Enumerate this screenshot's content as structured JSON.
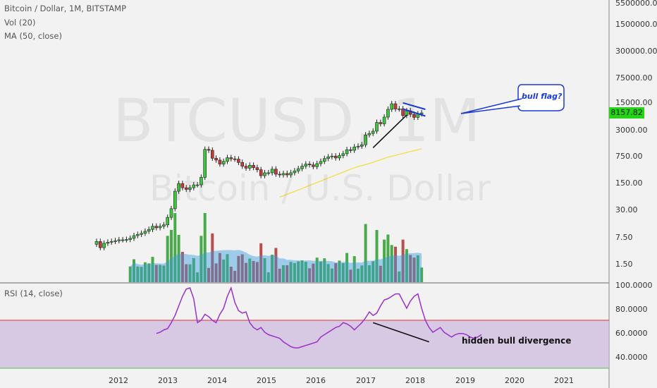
{
  "chart_data": {
    "type": "candlestick",
    "title": "Bitcoin / Dollar, 1M, BITSTAMP",
    "indicators": [
      "Vol (20)",
      "MA (50, close)"
    ],
    "rsi_title": "RSI (14, close)",
    "watermark_symbol": "BTCUSD, 1M",
    "watermark_name": "Bitcoin / U.S. Dollar",
    "y_scale": "log",
    "price_ticks": [
      "5500000.00",
      "1500000.00",
      "300000.00",
      "75000.00",
      "15000.00",
      "3000.00",
      "750.00",
      "150.00",
      "30.00",
      "7.50",
      "1.50"
    ],
    "price_tick_values": [
      5500000,
      1500000,
      300000,
      75000,
      15000,
      3000,
      750,
      150,
      30,
      7.5,
      1.5
    ],
    "rsi_ticks": [
      "100.0000",
      "80.0000",
      "60.0000",
      "40.0000"
    ],
    "rsi_tick_values": [
      100,
      80,
      60,
      40
    ],
    "rsi_levels": [
      70,
      30
    ],
    "x_ticks": [
      "2012",
      "2013",
      "2014",
      "2015",
      "2016",
      "2017",
      "2018",
      "2019",
      "2020",
      "2021"
    ],
    "current_price": "8157.82",
    "close": [
      5,
      3.5,
      4.5,
      4.8,
      5,
      5.2,
      5.5,
      5.5,
      5.6,
      6,
      7,
      7.5,
      8,
      9,
      10,
      12,
      11,
      12,
      13,
      20,
      33,
      90,
      140,
      110,
      100,
      110,
      130,
      130,
      200,
      1000,
      950,
      600,
      540,
      430,
      500,
      620,
      580,
      570,
      470,
      380,
      340,
      400,
      350,
      310,
      220,
      260,
      260,
      320,
      240,
      230,
      250,
      230,
      260,
      290,
      330,
      380,
      430,
      410,
      370,
      440,
      500,
      590,
      650,
      680,
      610,
      700,
      780,
      980,
      950,
      1150,
      1200,
      1300,
      2300,
      2500,
      2850,
      4700,
      4350,
      6400,
      10000,
      13800,
      10200,
      10300,
      7000,
      9200,
      7500,
      6300,
      7700,
      8150
    ],
    "rsi": [
      59,
      60,
      62,
      63,
      68,
      74,
      82,
      90,
      96,
      97,
      88,
      68,
      70,
      75,
      73,
      70,
      68,
      75,
      80,
      90,
      97,
      85,
      78,
      76,
      77,
      68,
      64,
      62,
      64,
      60,
      58,
      57,
      56,
      55,
      52,
      50,
      48,
      47,
      47,
      48,
      49,
      50,
      51,
      52,
      56,
      58,
      60,
      62,
      64,
      65,
      68,
      67,
      65,
      62,
      65,
      68,
      72,
      77,
      74,
      76,
      82,
      87,
      88,
      90,
      92,
      92,
      86,
      80,
      86,
      90,
      92,
      80,
      70,
      64,
      60,
      62,
      64,
      60,
      58,
      56,
      58,
      59,
      59,
      58,
      56,
      55,
      56,
      58
    ],
    "annotations": [
      "bull flag?",
      "hidden bull divergence"
    ]
  }
}
